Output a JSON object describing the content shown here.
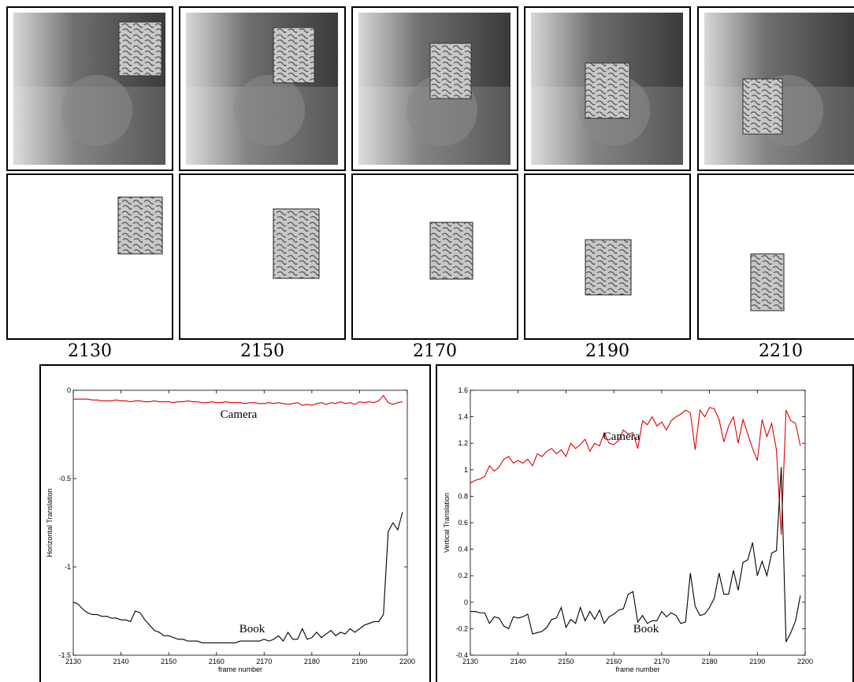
{
  "frames": [
    "2130",
    "2150",
    "2170",
    "2190",
    "2210"
  ],
  "chart_data": [
    {
      "type": "line",
      "xlabel": "frame number",
      "ylabel": "Horizontal Translation",
      "xlim": [
        2130,
        2200
      ],
      "xticks": [
        2130,
        2140,
        2150,
        2160,
        2170,
        2180,
        2190,
        2200
      ],
      "ylim": [
        -1.5,
        0
      ],
      "yticks": [
        -1.5,
        -1,
        -0.5,
        0
      ],
      "grid": false,
      "x": [
        2130,
        2131,
        2132,
        2133,
        2134,
        2135,
        2136,
        2137,
        2138,
        2139,
        2140,
        2141,
        2142,
        2143,
        2144,
        2145,
        2146,
        2147,
        2148,
        2149,
        2150,
        2151,
        2152,
        2153,
        2154,
        2155,
        2156,
        2157,
        2158,
        2159,
        2160,
        2161,
        2162,
        2163,
        2164,
        2165,
        2166,
        2167,
        2168,
        2169,
        2170,
        2171,
        2172,
        2173,
        2174,
        2175,
        2176,
        2177,
        2178,
        2179,
        2180,
        2181,
        2182,
        2183,
        2184,
        2185,
        2186,
        2187,
        2188,
        2189,
        2190,
        2191,
        2192,
        2193,
        2194,
        2195,
        2196,
        2197,
        2198,
        2199
      ],
      "series": [
        {
          "name": "Camera",
          "color": "#e00000",
          "values": [
            -0.05,
            -0.05,
            -0.05,
            -0.05,
            -0.055,
            -0.055,
            -0.06,
            -0.06,
            -0.06,
            -0.055,
            -0.06,
            -0.06,
            -0.065,
            -0.06,
            -0.06,
            -0.065,
            -0.065,
            -0.06,
            -0.065,
            -0.065,
            -0.065,
            -0.07,
            -0.065,
            -0.065,
            -0.06,
            -0.065,
            -0.065,
            -0.07,
            -0.07,
            -0.065,
            -0.07,
            -0.07,
            -0.065,
            -0.07,
            -0.07,
            -0.07,
            -0.075,
            -0.07,
            -0.07,
            -0.075,
            -0.075,
            -0.07,
            -0.075,
            -0.07,
            -0.075,
            -0.08,
            -0.075,
            -0.07,
            -0.085,
            -0.08,
            -0.085,
            -0.075,
            -0.07,
            -0.08,
            -0.07,
            -0.075,
            -0.065,
            -0.075,
            -0.07,
            -0.08,
            -0.065,
            -0.07,
            -0.065,
            -0.07,
            -0.06,
            -0.03,
            -0.07,
            -0.08,
            -0.07,
            -0.065
          ]
        },
        {
          "name": "Book",
          "color": "#000000",
          "values": [
            -1.2,
            -1.21,
            -1.24,
            -1.26,
            -1.27,
            -1.27,
            -1.28,
            -1.28,
            -1.29,
            -1.29,
            -1.3,
            -1.3,
            -1.31,
            -1.25,
            -1.26,
            -1.3,
            -1.33,
            -1.36,
            -1.37,
            -1.39,
            -1.39,
            -1.4,
            -1.41,
            -1.41,
            -1.42,
            -1.42,
            -1.42,
            -1.43,
            -1.43,
            -1.43,
            -1.43,
            -1.43,
            -1.43,
            -1.43,
            -1.43,
            -1.42,
            -1.42,
            -1.42,
            -1.42,
            -1.42,
            -1.41,
            -1.42,
            -1.41,
            -1.39,
            -1.42,
            -1.37,
            -1.41,
            -1.41,
            -1.35,
            -1.41,
            -1.4,
            -1.37,
            -1.4,
            -1.38,
            -1.36,
            -1.39,
            -1.37,
            -1.38,
            -1.35,
            -1.37,
            -1.35,
            -1.33,
            -1.32,
            -1.31,
            -1.31,
            -1.27,
            -0.8,
            -0.75,
            -0.79,
            -0.69
          ]
        }
      ]
    },
    {
      "type": "line",
      "xlabel": "frame number",
      "ylabel": "Vertical Translation",
      "xlim": [
        2130,
        2200
      ],
      "xticks": [
        2130,
        2140,
        2150,
        2160,
        2170,
        2180,
        2190,
        2200
      ],
      "ylim": [
        -0.4,
        1.6
      ],
      "yticks": [
        -0.4,
        -0.2,
        0,
        0.2,
        0.4,
        0.6,
        0.8,
        1,
        1.2,
        1.4,
        1.6
      ],
      "grid": false,
      "x": [
        2130,
        2131,
        2132,
        2133,
        2134,
        2135,
        2136,
        2137,
        2138,
        2139,
        2140,
        2141,
        2142,
        2143,
        2144,
        2145,
        2146,
        2147,
        2148,
        2149,
        2150,
        2151,
        2152,
        2153,
        2154,
        2155,
        2156,
        2157,
        2158,
        2159,
        2160,
        2161,
        2162,
        2163,
        2164,
        2165,
        2166,
        2167,
        2168,
        2169,
        2170,
        2171,
        2172,
        2173,
        2174,
        2175,
        2176,
        2177,
        2178,
        2179,
        2180,
        2181,
        2182,
        2183,
        2184,
        2185,
        2186,
        2187,
        2188,
        2189,
        2190,
        2191,
        2192,
        2193,
        2194,
        2195,
        2196,
        2197,
        2198,
        2199
      ],
      "series": [
        {
          "name": "Camera",
          "color": "#e00000",
          "values": [
            0.9,
            0.92,
            0.93,
            0.95,
            1.03,
            0.99,
            1.02,
            1.08,
            1.1,
            1.05,
            1.07,
            1.05,
            1.08,
            1.03,
            1.12,
            1.1,
            1.14,
            1.16,
            1.12,
            1.15,
            1.1,
            1.2,
            1.16,
            1.19,
            1.23,
            1.14,
            1.2,
            1.18,
            1.28,
            1.2,
            1.19,
            1.22,
            1.3,
            1.27,
            1.28,
            1.16,
            1.37,
            1.34,
            1.4,
            1.33,
            1.36,
            1.3,
            1.37,
            1.4,
            1.42,
            1.45,
            1.43,
            1.15,
            1.45,
            1.4,
            1.47,
            1.46,
            1.38,
            1.21,
            1.33,
            1.4,
            1.2,
            1.38,
            1.27,
            1.16,
            1.07,
            1.38,
            1.25,
            1.35,
            1.15,
            0.51,
            1.45,
            1.37,
            1.35,
            1.18
          ]
        },
        {
          "name": "Book",
          "color": "#000000",
          "values": [
            -0.07,
            -0.07,
            -0.08,
            -0.08,
            -0.16,
            -0.11,
            -0.12,
            -0.18,
            -0.2,
            -0.11,
            -0.12,
            -0.11,
            -0.09,
            -0.24,
            -0.23,
            -0.22,
            -0.19,
            -0.13,
            -0.12,
            -0.04,
            -0.19,
            -0.13,
            -0.16,
            -0.04,
            -0.14,
            -0.07,
            -0.13,
            -0.06,
            -0.16,
            -0.11,
            -0.09,
            -0.06,
            -0.05,
            0.06,
            0.08,
            -0.15,
            -0.1,
            -0.16,
            -0.14,
            -0.14,
            -0.07,
            -0.11,
            -0.08,
            -0.1,
            -0.16,
            -0.15,
            0.22,
            -0.03,
            -0.1,
            -0.09,
            -0.04,
            0.03,
            0.22,
            0.06,
            0.06,
            0.24,
            0.09,
            0.3,
            0.32,
            0.45,
            0.2,
            0.31,
            0.2,
            0.37,
            0.39,
            1.02,
            -0.3,
            -0.23,
            -0.14,
            0.05
          ]
        }
      ]
    }
  ]
}
